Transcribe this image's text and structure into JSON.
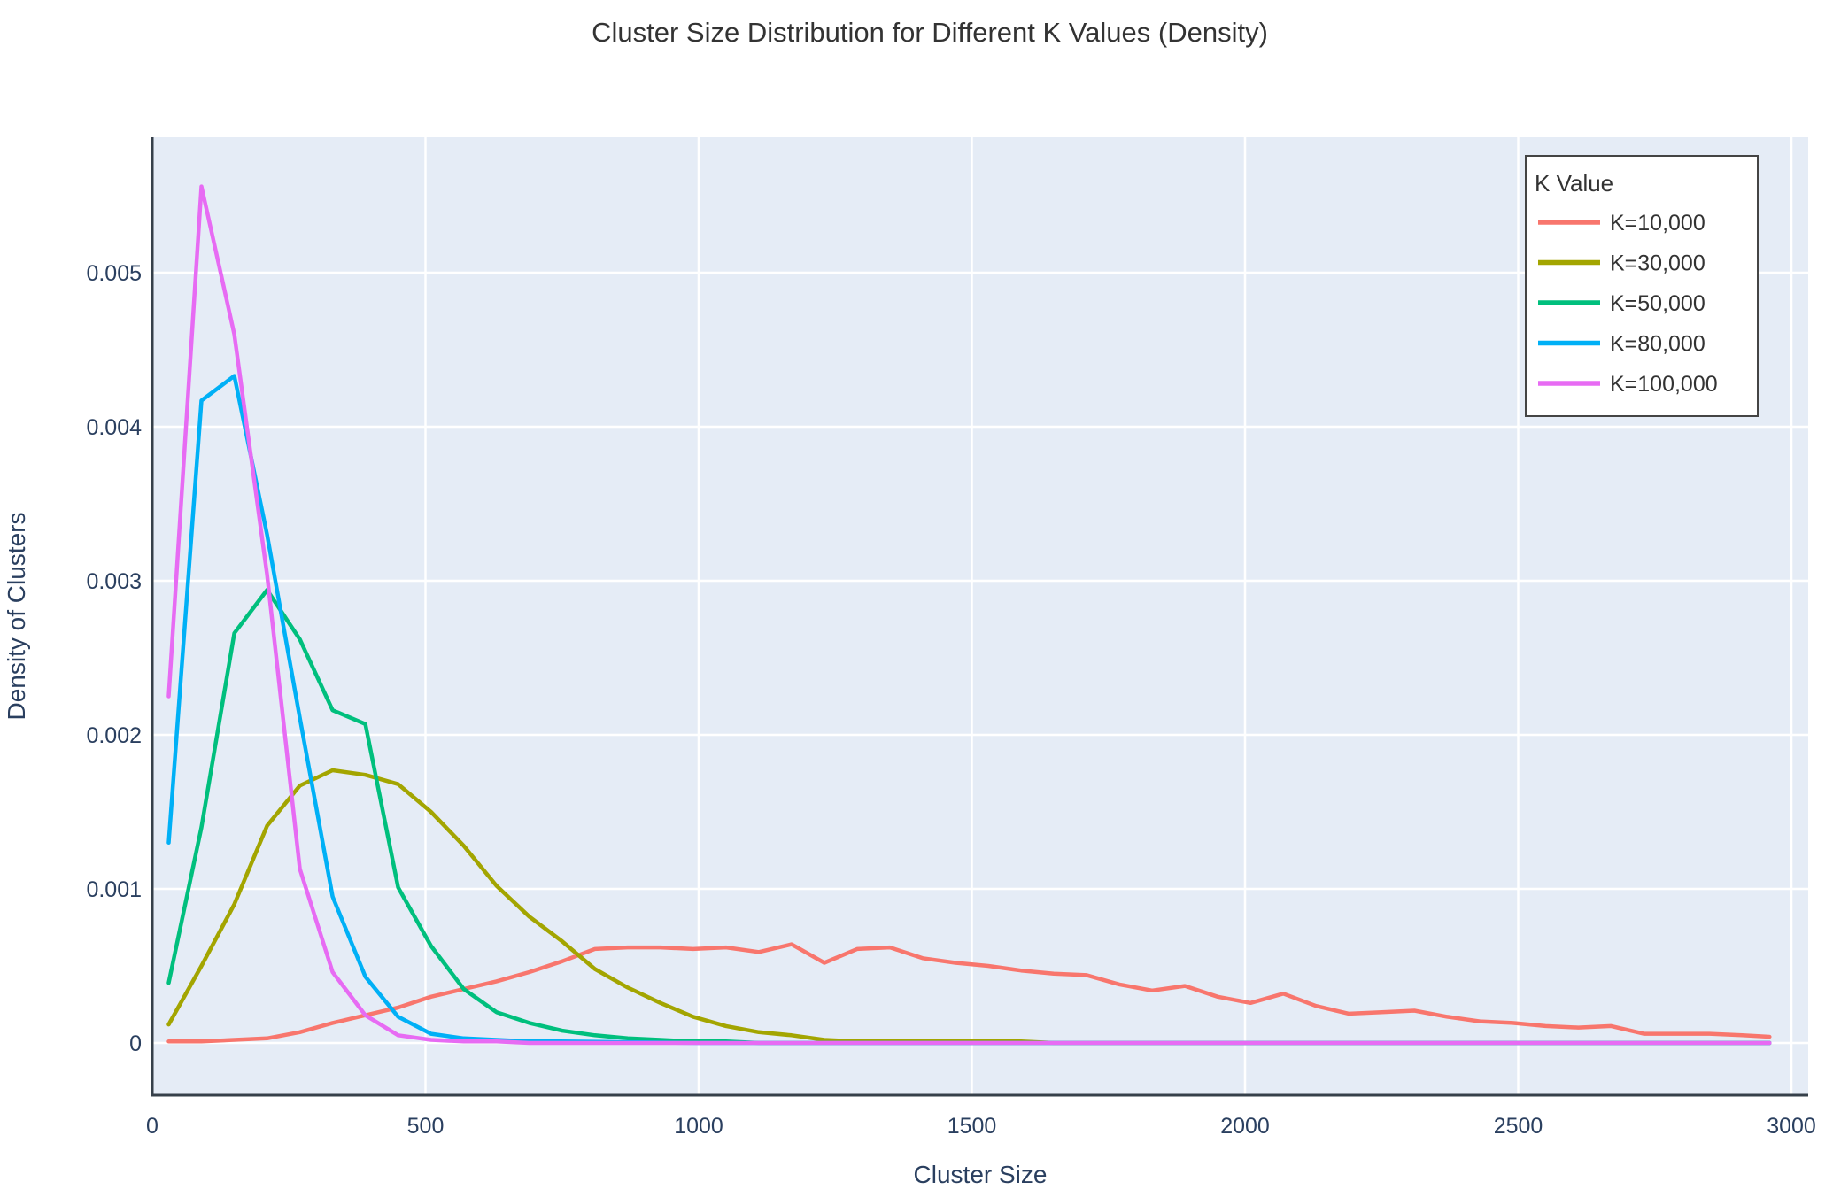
{
  "title": "Cluster Size Distribution for Different K Values (Density)",
  "x_label": "Cluster Size",
  "y_label": "Density of Clusters",
  "legend_title": "K Value",
  "colors": {
    "plot_background": "#e5ecf6",
    "gridline": "#ffffff",
    "axis_line": "#36404a",
    "tick_text": "#2a3f5f",
    "title_text": "#333333"
  },
  "chart_data": {
    "type": "line",
    "title": "Cluster Size Distribution for Different K Values (Density)",
    "xlabel": "Cluster Size",
    "ylabel": "Density of Clusters",
    "xlim": [
      0,
      3030
    ],
    "ylim": [
      -0.00034,
      0.00588
    ],
    "grid": true,
    "legend_title": "K Value",
    "legend_position": "top-right",
    "x_ticks": [
      0,
      500,
      1000,
      1500,
      2000,
      2500,
      3000
    ],
    "x_tick_labels": [
      "0",
      "500",
      "1000",
      "1500",
      "2000",
      "2500",
      "3000"
    ],
    "y_ticks": [
      0,
      0.001,
      0.002,
      0.003,
      0.004,
      0.005
    ],
    "y_tick_labels": [
      "0",
      "0.001",
      "0.002",
      "0.003",
      "0.004",
      "0.005"
    ],
    "series": [
      {
        "name": "K=10,000",
        "color": "#F8766D",
        "x": [
          30,
          90,
          150,
          210,
          270,
          330,
          390,
          450,
          510,
          570,
          630,
          690,
          750,
          810,
          870,
          930,
          990,
          1050,
          1110,
          1170,
          1230,
          1290,
          1350,
          1410,
          1470,
          1530,
          1590,
          1650,
          1710,
          1770,
          1830,
          1890,
          1950,
          2010,
          2070,
          2130,
          2190,
          2250,
          2310,
          2370,
          2430,
          2490,
          2550,
          2610,
          2670,
          2730,
          2790,
          2850,
          2910,
          2960
        ],
        "y": [
          1e-05,
          1e-05,
          2e-05,
          3e-05,
          7e-05,
          0.00013,
          0.00018,
          0.00023,
          0.0003,
          0.00035,
          0.0004,
          0.00046,
          0.00053,
          0.00061,
          0.00062,
          0.00062,
          0.00061,
          0.00062,
          0.00059,
          0.00064,
          0.00052,
          0.00061,
          0.00062,
          0.00055,
          0.00052,
          0.0005,
          0.00047,
          0.00045,
          0.00044,
          0.00038,
          0.00034,
          0.00037,
          0.0003,
          0.00026,
          0.00032,
          0.00024,
          0.00019,
          0.0002,
          0.00021,
          0.00017,
          0.00014,
          0.00013,
          0.00011,
          0.0001,
          0.00011,
          6e-05,
          6e-05,
          6e-05,
          5e-05,
          4e-05
        ]
      },
      {
        "name": "K=30,000",
        "color": "#A3A500",
        "x": [
          30,
          90,
          150,
          210,
          270,
          330,
          390,
          450,
          510,
          570,
          630,
          690,
          750,
          810,
          870,
          930,
          990,
          1050,
          1110,
          1170,
          1230,
          1290,
          1350,
          1410,
          1470,
          1530,
          1590,
          1650,
          1710,
          2000,
          2500,
          2960
        ],
        "y": [
          0.00012,
          0.0005,
          0.0009,
          0.00141,
          0.00167,
          0.00177,
          0.00174,
          0.00168,
          0.0015,
          0.00128,
          0.00102,
          0.00082,
          0.00066,
          0.00048,
          0.00036,
          0.00026,
          0.00017,
          0.00011,
          7e-05,
          5e-05,
          2e-05,
          1e-05,
          1e-05,
          1e-05,
          1e-05,
          1e-05,
          1e-05,
          0,
          0,
          0,
          0,
          0
        ]
      },
      {
        "name": "K=50,000",
        "color": "#00BF7D",
        "x": [
          30,
          90,
          150,
          210,
          270,
          330,
          390,
          450,
          510,
          570,
          630,
          690,
          750,
          810,
          870,
          930,
          990,
          1050,
          1110,
          1500,
          2000,
          2500,
          2960
        ],
        "y": [
          0.00039,
          0.0014,
          0.00266,
          0.00294,
          0.00262,
          0.00216,
          0.00207,
          0.00101,
          0.00063,
          0.00035,
          0.0002,
          0.00013,
          8e-05,
          5e-05,
          3e-05,
          2e-05,
          1e-05,
          1e-05,
          0,
          0,
          0,
          0,
          0
        ]
      },
      {
        "name": "K=80,000",
        "color": "#00B0F6",
        "x": [
          30,
          90,
          150,
          210,
          270,
          330,
          390,
          450,
          510,
          570,
          630,
          690,
          750,
          1000,
          1500,
          2000,
          2500,
          2960
        ],
        "y": [
          0.0013,
          0.00417,
          0.00433,
          0.0033,
          0.00211,
          0.00095,
          0.00043,
          0.00017,
          6e-05,
          3e-05,
          2e-05,
          1e-05,
          1e-05,
          0,
          0,
          0,
          0,
          0
        ]
      },
      {
        "name": "K=100,000",
        "color": "#E76BF3",
        "x": [
          30,
          90,
          150,
          210,
          270,
          330,
          390,
          450,
          510,
          570,
          630,
          690,
          750,
          1000,
          1500,
          2000,
          2500,
          2960
        ],
        "y": [
          0.00225,
          0.00556,
          0.0046,
          0.00304,
          0.00113,
          0.00046,
          0.00018,
          5e-05,
          2e-05,
          1e-05,
          1e-05,
          0,
          0,
          0,
          0,
          0,
          0,
          0
        ]
      }
    ]
  }
}
